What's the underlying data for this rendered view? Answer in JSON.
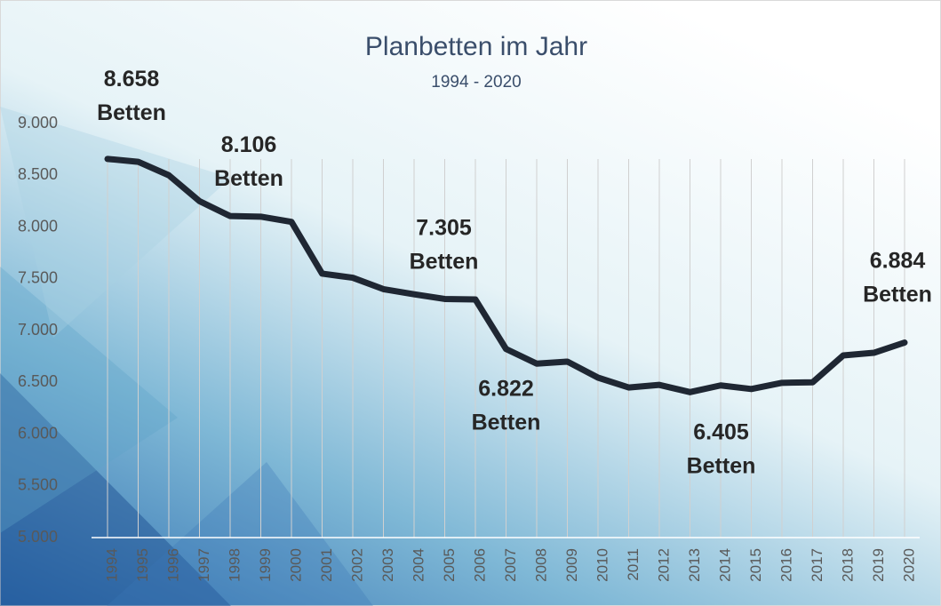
{
  "chart_data": {
    "type": "line",
    "title": "Planbetten im Jahr",
    "subtitle": "1994 - 2020",
    "categories": [
      "1994",
      "1995",
      "1996",
      "1997",
      "1998",
      "1999",
      "2000",
      "2001",
      "2002",
      "2003",
      "2004",
      "2005",
      "2006",
      "2007",
      "2008",
      "2009",
      "2010",
      "2011",
      "2012",
      "2013",
      "2014",
      "2015",
      "2016",
      "2017",
      "2018",
      "2019",
      "2020"
    ],
    "values": [
      8658,
      8630,
      8500,
      8250,
      8106,
      8100,
      8050,
      7550,
      7510,
      7400,
      7350,
      7305,
      7300,
      6822,
      6680,
      6700,
      6545,
      6450,
      6475,
      6405,
      6470,
      6435,
      6495,
      6500,
      6760,
      6785,
      6884
    ],
    "value_labels": [
      "8.658 Betten",
      null,
      null,
      null,
      "8.106 Betten",
      null,
      null,
      null,
      null,
      null,
      null,
      "7.305 Betten",
      null,
      "6.822 Betten",
      null,
      null,
      null,
      null,
      null,
      "6.405 Betten",
      null,
      null,
      null,
      null,
      null,
      null,
      "6.884 Betten"
    ],
    "color": "#1f2733",
    "ylim": [
      5000,
      9000
    ],
    "yticks": [
      {
        "value": 5000,
        "label": "5.000"
      },
      {
        "value": 5500,
        "label": "5.500"
      },
      {
        "value": 6000,
        "label": "6.000"
      },
      {
        "value": 6500,
        "label": "6.500"
      },
      {
        "value": 7000,
        "label": "7.000"
      },
      {
        "value": 7500,
        "label": "7.500"
      },
      {
        "value": 8000,
        "label": "8.000"
      },
      {
        "value": 8500,
        "label": "8.500"
      },
      {
        "value": 9000,
        "label": "9.000"
      }
    ],
    "grid": true
  }
}
